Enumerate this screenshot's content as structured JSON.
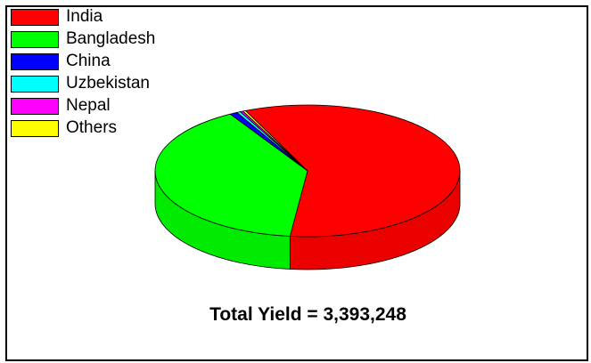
{
  "chart_data": {
    "type": "pie",
    "style": "3d",
    "categories": [
      "India",
      "Bangladesh",
      "China",
      "Uzbekistan",
      "Nepal",
      "Others"
    ],
    "values": [
      58.5,
      39.7,
      0.8,
      0.4,
      0.3,
      0.3
    ],
    "units": "% of total (estimated)",
    "colors": [
      "#ff0000",
      "#00ff00",
      "#0000ff",
      "#00ffff",
      "#ff00ff",
      "#ffff00"
    ],
    "legend_position": "top-left",
    "annotation": {
      "label": "Total Yield",
      "value": "3,393,248",
      "text": "Total Yield = 3,393,248"
    }
  }
}
